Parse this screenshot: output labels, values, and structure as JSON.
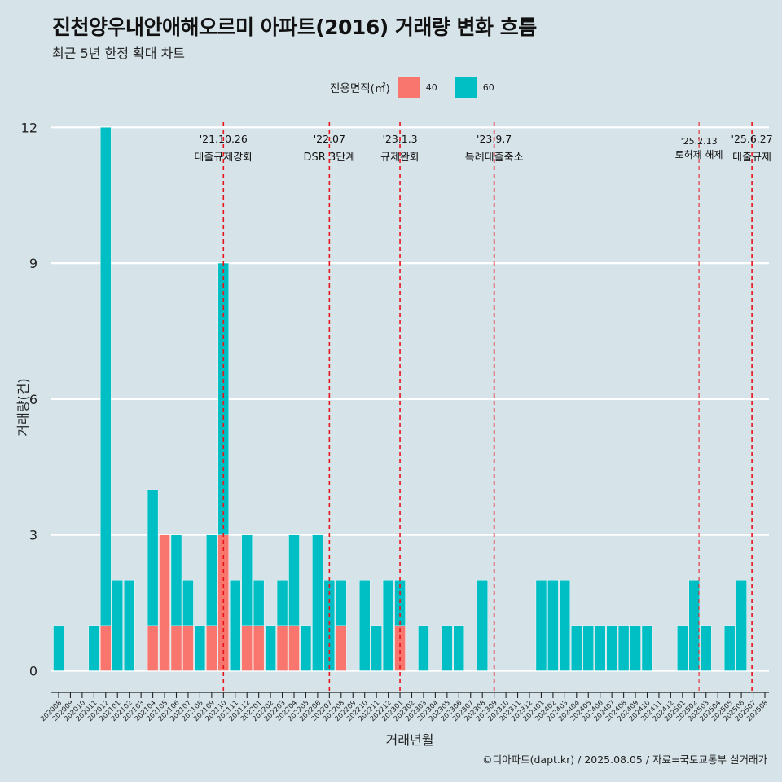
{
  "title": "진천양우내안애해오르미 아파트(2016) 거래량 변화 흐름",
  "subtitle": "최근 5년 한정 확대 차트",
  "legend": {
    "title": "전용면적(㎡)",
    "items": [
      {
        "label": "40",
        "color": "#f8766d"
      },
      {
        "label": "60",
        "color": "#00bfc4"
      }
    ]
  },
  "caption": "©디아파트(dapt.kr) / 2025.08.05 / 자료=국토교통부 실거래가",
  "chart_data": {
    "type": "bar",
    "xlabel": "거래년월",
    "ylabel": "거래량(건)",
    "ylim": [
      -0.5,
      12
    ],
    "yticks": [
      0,
      3,
      6,
      9,
      12
    ],
    "grid": true,
    "legend_position": "top",
    "categories": [
      "202008",
      "202009",
      "202010",
      "202011",
      "202012",
      "202101",
      "202102",
      "202103",
      "202104",
      "202105",
      "202106",
      "202107",
      "202108",
      "202109",
      "202110",
      "202111",
      "202112",
      "202201",
      "202202",
      "202203",
      "202204",
      "202205",
      "202206",
      "202207",
      "202208",
      "202209",
      "202210",
      "202211",
      "202212",
      "202301",
      "202302",
      "202303",
      "202304",
      "202305",
      "202306",
      "202307",
      "202308",
      "202309",
      "202310",
      "202311",
      "202312",
      "202401",
      "202402",
      "202403",
      "202404",
      "202405",
      "202406",
      "202407",
      "202408",
      "202409",
      "202410",
      "202411",
      "202412",
      "202501",
      "202502",
      "202503",
      "202504",
      "202505",
      "202506",
      "202507",
      "202508"
    ],
    "series": [
      {
        "name": "40",
        "color": "#f8766d",
        "values": [
          0,
          0,
          0,
          0,
          1,
          0,
          0,
          0,
          1,
          3,
          1,
          1,
          0,
          1,
          3,
          0,
          1,
          1,
          0,
          1,
          1,
          0,
          0,
          0,
          1,
          0,
          0,
          0,
          0,
          1,
          0,
          0,
          0,
          0,
          0,
          0,
          0,
          0,
          0,
          0,
          0,
          0,
          0,
          0,
          0,
          0,
          0,
          0,
          0,
          0,
          0,
          0,
          0,
          0,
          0,
          0,
          0,
          0,
          0,
          0,
          0
        ]
      },
      {
        "name": "60",
        "color": "#00bfc4",
        "values": [
          1,
          0,
          0,
          1,
          11,
          2,
          2,
          0,
          3,
          0,
          2,
          1,
          1,
          2,
          6,
          2,
          2,
          1,
          1,
          1,
          2,
          1,
          3,
          2,
          1,
          0,
          2,
          1,
          2,
          1,
          0,
          1,
          0,
          1,
          1,
          0,
          2,
          0,
          0,
          0,
          0,
          2,
          2,
          2,
          1,
          1,
          1,
          1,
          1,
          1,
          1,
          0,
          0,
          1,
          2,
          1,
          0,
          1,
          2,
          0,
          0
        ]
      }
    ],
    "events": [
      {
        "index": 14.0,
        "date": "'21.10.26",
        "label": "대출규제강화",
        "size": "large"
      },
      {
        "index": 23.0,
        "date": "'22.07",
        "label": "DSR 3단계",
        "size": "large"
      },
      {
        "index": 29.0,
        "date": "'23.1.3",
        "label": "규제완화",
        "size": "large"
      },
      {
        "index": 37.0,
        "date": "'23.9.7",
        "label": "특례대출축소",
        "size": "large"
      },
      {
        "index": 54.4,
        "date": "'25.2.13",
        "label": "토허제 해제",
        "size": "small"
      },
      {
        "index": 58.9,
        "date": "'25.6.27",
        "label": "대출규제",
        "size": "large"
      }
    ]
  }
}
